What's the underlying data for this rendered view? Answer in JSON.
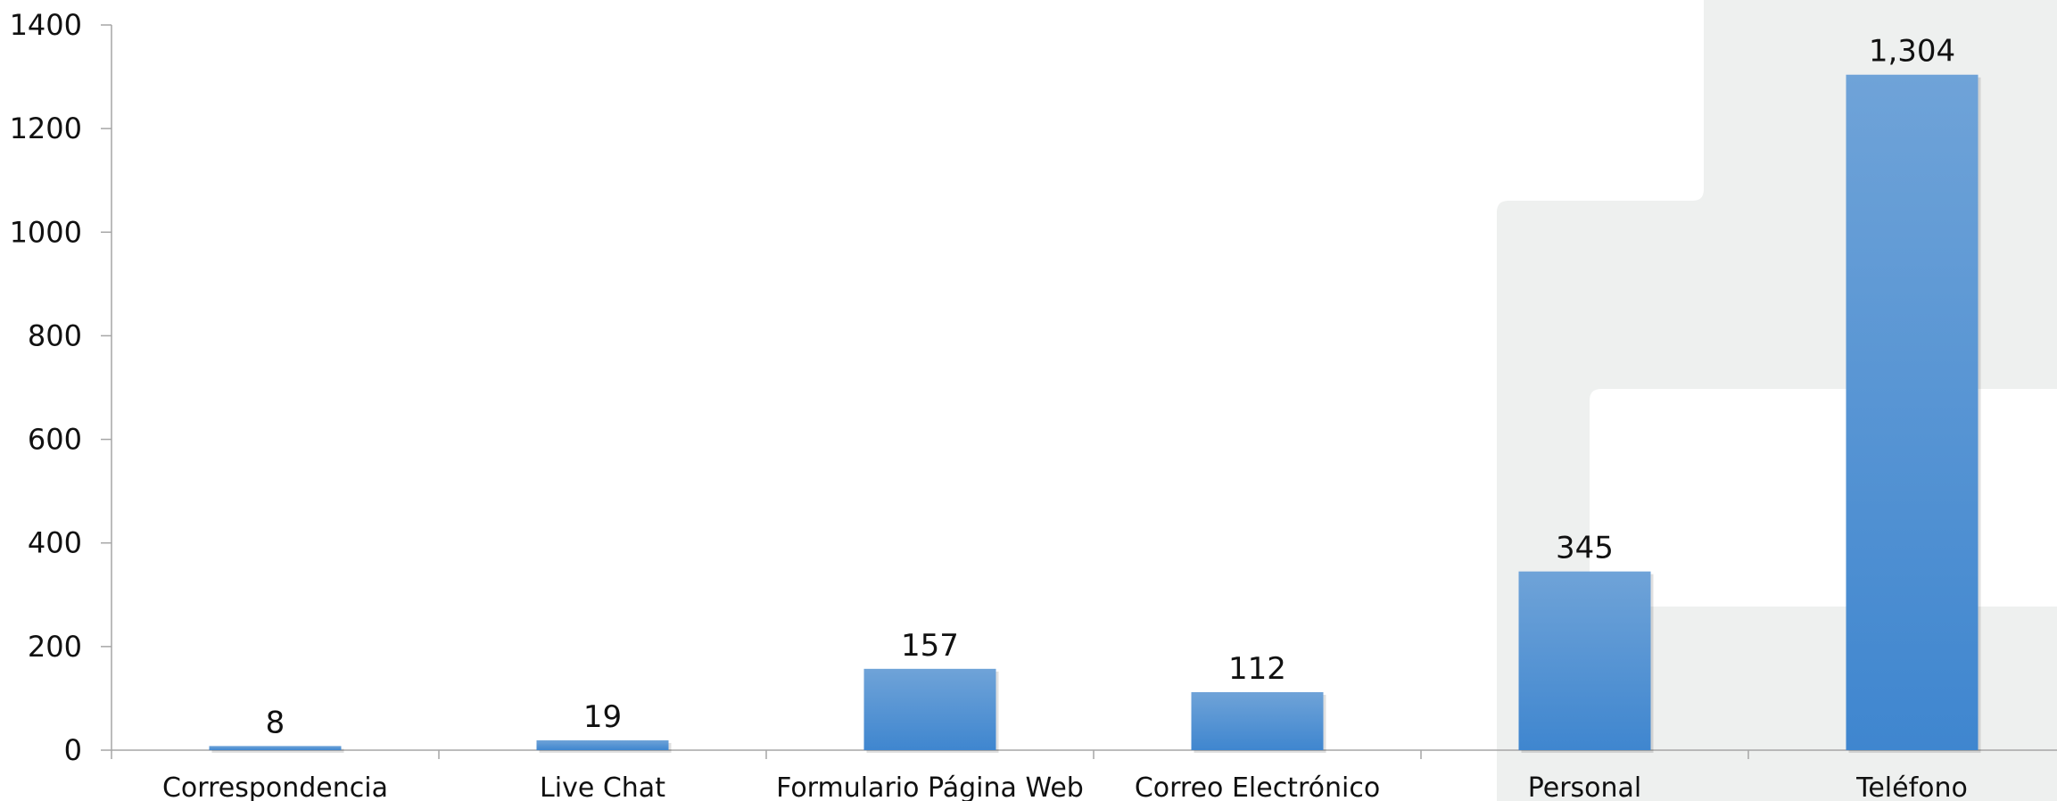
{
  "chart_data": {
    "type": "bar",
    "categories": [
      "Correspondencia",
      "Live Chat",
      "Formulario Página Web",
      "Correo Electrónico",
      "Personal",
      "Teléfono"
    ],
    "values": [
      8,
      19,
      157,
      112,
      345,
      1304
    ],
    "value_labels": [
      "8",
      "19",
      "157",
      "112",
      "345",
      "1,304"
    ],
    "yticks": [
      "0",
      "200",
      "400",
      "600",
      "800",
      "1000",
      "1200",
      "1400"
    ],
    "ylim": [
      0,
      1400
    ],
    "grid": false,
    "legend": "none",
    "colors": {
      "bar_top": "#6fa3d8",
      "bar_bottom": "#3f86cf",
      "axis": "#a6a6a6",
      "background_shape": "#eef0ef"
    }
  }
}
